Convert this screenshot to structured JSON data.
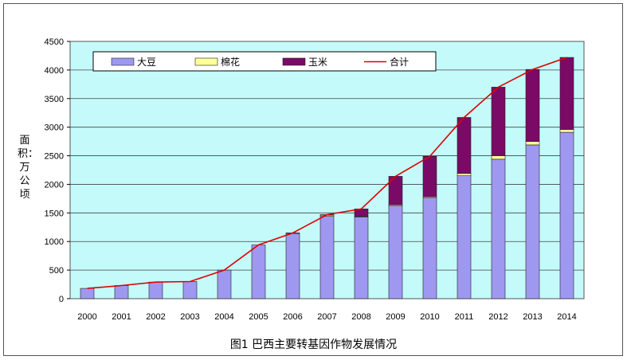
{
  "caption": "图1 巴西主要转基因作物发展情况",
  "chart_data": {
    "type": "bar",
    "stacked": true,
    "title": "",
    "xlabel": "",
    "ylabel": "面积：万公顷",
    "ylim": [
      0,
      4500
    ],
    "yticks": [
      0,
      500,
      1000,
      1500,
      2000,
      2500,
      3000,
      3500,
      4000,
      4500
    ],
    "grid": true,
    "legend_position": "top",
    "categories": [
      "2000",
      "2001",
      "2002",
      "2003",
      "2004",
      "2005",
      "2006",
      "2007",
      "2008",
      "2009",
      "2010",
      "2011",
      "2012",
      "2013",
      "2014"
    ],
    "series": [
      {
        "name": "大豆",
        "kind": "bar",
        "color": "#9f98f0",
        "values": [
          180,
          230,
          290,
          300,
          500,
          940,
          1140,
          1440,
          1430,
          1620,
          1760,
          2150,
          2440,
          2690,
          2910
        ]
      },
      {
        "name": "棉花",
        "kind": "bar",
        "color": "#ffff9a",
        "values": [
          0,
          0,
          0,
          0,
          0,
          0,
          0,
          20,
          10,
          20,
          20,
          40,
          60,
          60,
          50
        ]
      },
      {
        "name": "玉米",
        "kind": "bar",
        "color": "#7a0a66",
        "values": [
          0,
          0,
          0,
          0,
          0,
          0,
          10,
          10,
          130,
          500,
          710,
          980,
          1200,
          1260,
          1260
        ]
      },
      {
        "name": "合计",
        "kind": "line",
        "color": "#e00000",
        "values": [
          180,
          230,
          290,
          300,
          500,
          940,
          1150,
          1470,
          1570,
          2140,
          2490,
          3170,
          3700,
          4010,
          4220
        ]
      }
    ]
  }
}
